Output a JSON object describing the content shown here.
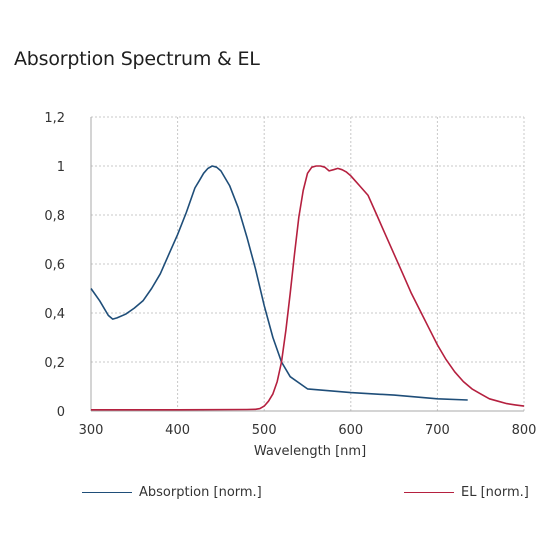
{
  "chart_data": {
    "type": "line",
    "title": "Absorption Spectrum & EL",
    "xlabel": "Wavelength [nm]",
    "ylabel": "",
    "xlim": [
      300,
      800
    ],
    "ylim": [
      0,
      1.2
    ],
    "xticks": [
      300,
      400,
      500,
      600,
      700,
      800
    ],
    "yticks": [
      0,
      0.2,
      0.4,
      0.6,
      0.8,
      1,
      1.2
    ],
    "xtick_labels": [
      "300",
      "400",
      "500",
      "600",
      "700",
      "800"
    ],
    "ytick_labels": [
      "0",
      "0,2",
      "0,4",
      "0,6",
      "0,8",
      "1",
      "1,2"
    ],
    "grid": true,
    "legend_position": "bottom",
    "series": [
      {
        "name": "Absorption [norm.]",
        "color": "#1f4e79",
        "x": [
          300,
          310,
          320,
          325,
          330,
          340,
          350,
          360,
          370,
          380,
          390,
          400,
          410,
          420,
          425,
          430,
          435,
          440,
          445,
          450,
          460,
          470,
          480,
          490,
          500,
          510,
          520,
          530,
          550,
          600,
          650,
          700,
          735
        ],
        "y": [
          0.5,
          0.45,
          0.39,
          0.375,
          0.38,
          0.395,
          0.42,
          0.45,
          0.5,
          0.56,
          0.64,
          0.72,
          0.81,
          0.91,
          0.94,
          0.97,
          0.99,
          1.0,
          0.995,
          0.98,
          0.92,
          0.83,
          0.71,
          0.58,
          0.43,
          0.3,
          0.2,
          0.14,
          0.09,
          0.075,
          0.065,
          0.05,
          0.045
        ]
      },
      {
        "name": "EL [norm.]",
        "color": "#b5203f",
        "x": [
          300,
          400,
          480,
          490,
          495,
          500,
          505,
          510,
          515,
          520,
          525,
          530,
          535,
          540,
          545,
          550,
          555,
          560,
          565,
          570,
          575,
          580,
          585,
          590,
          595,
          600,
          605,
          610,
          615,
          620,
          630,
          640,
          650,
          660,
          670,
          680,
          690,
          700,
          710,
          720,
          730,
          740,
          750,
          760,
          770,
          780,
          790,
          800
        ],
        "y": [
          0.005,
          0.005,
          0.006,
          0.007,
          0.01,
          0.02,
          0.04,
          0.07,
          0.12,
          0.2,
          0.33,
          0.48,
          0.64,
          0.79,
          0.9,
          0.97,
          0.995,
          1.0,
          1.0,
          0.995,
          0.98,
          0.985,
          0.99,
          0.985,
          0.975,
          0.96,
          0.94,
          0.92,
          0.9,
          0.88,
          0.8,
          0.72,
          0.64,
          0.56,
          0.48,
          0.41,
          0.34,
          0.27,
          0.21,
          0.16,
          0.12,
          0.09,
          0.07,
          0.05,
          0.04,
          0.03,
          0.025,
          0.02
        ]
      }
    ]
  }
}
